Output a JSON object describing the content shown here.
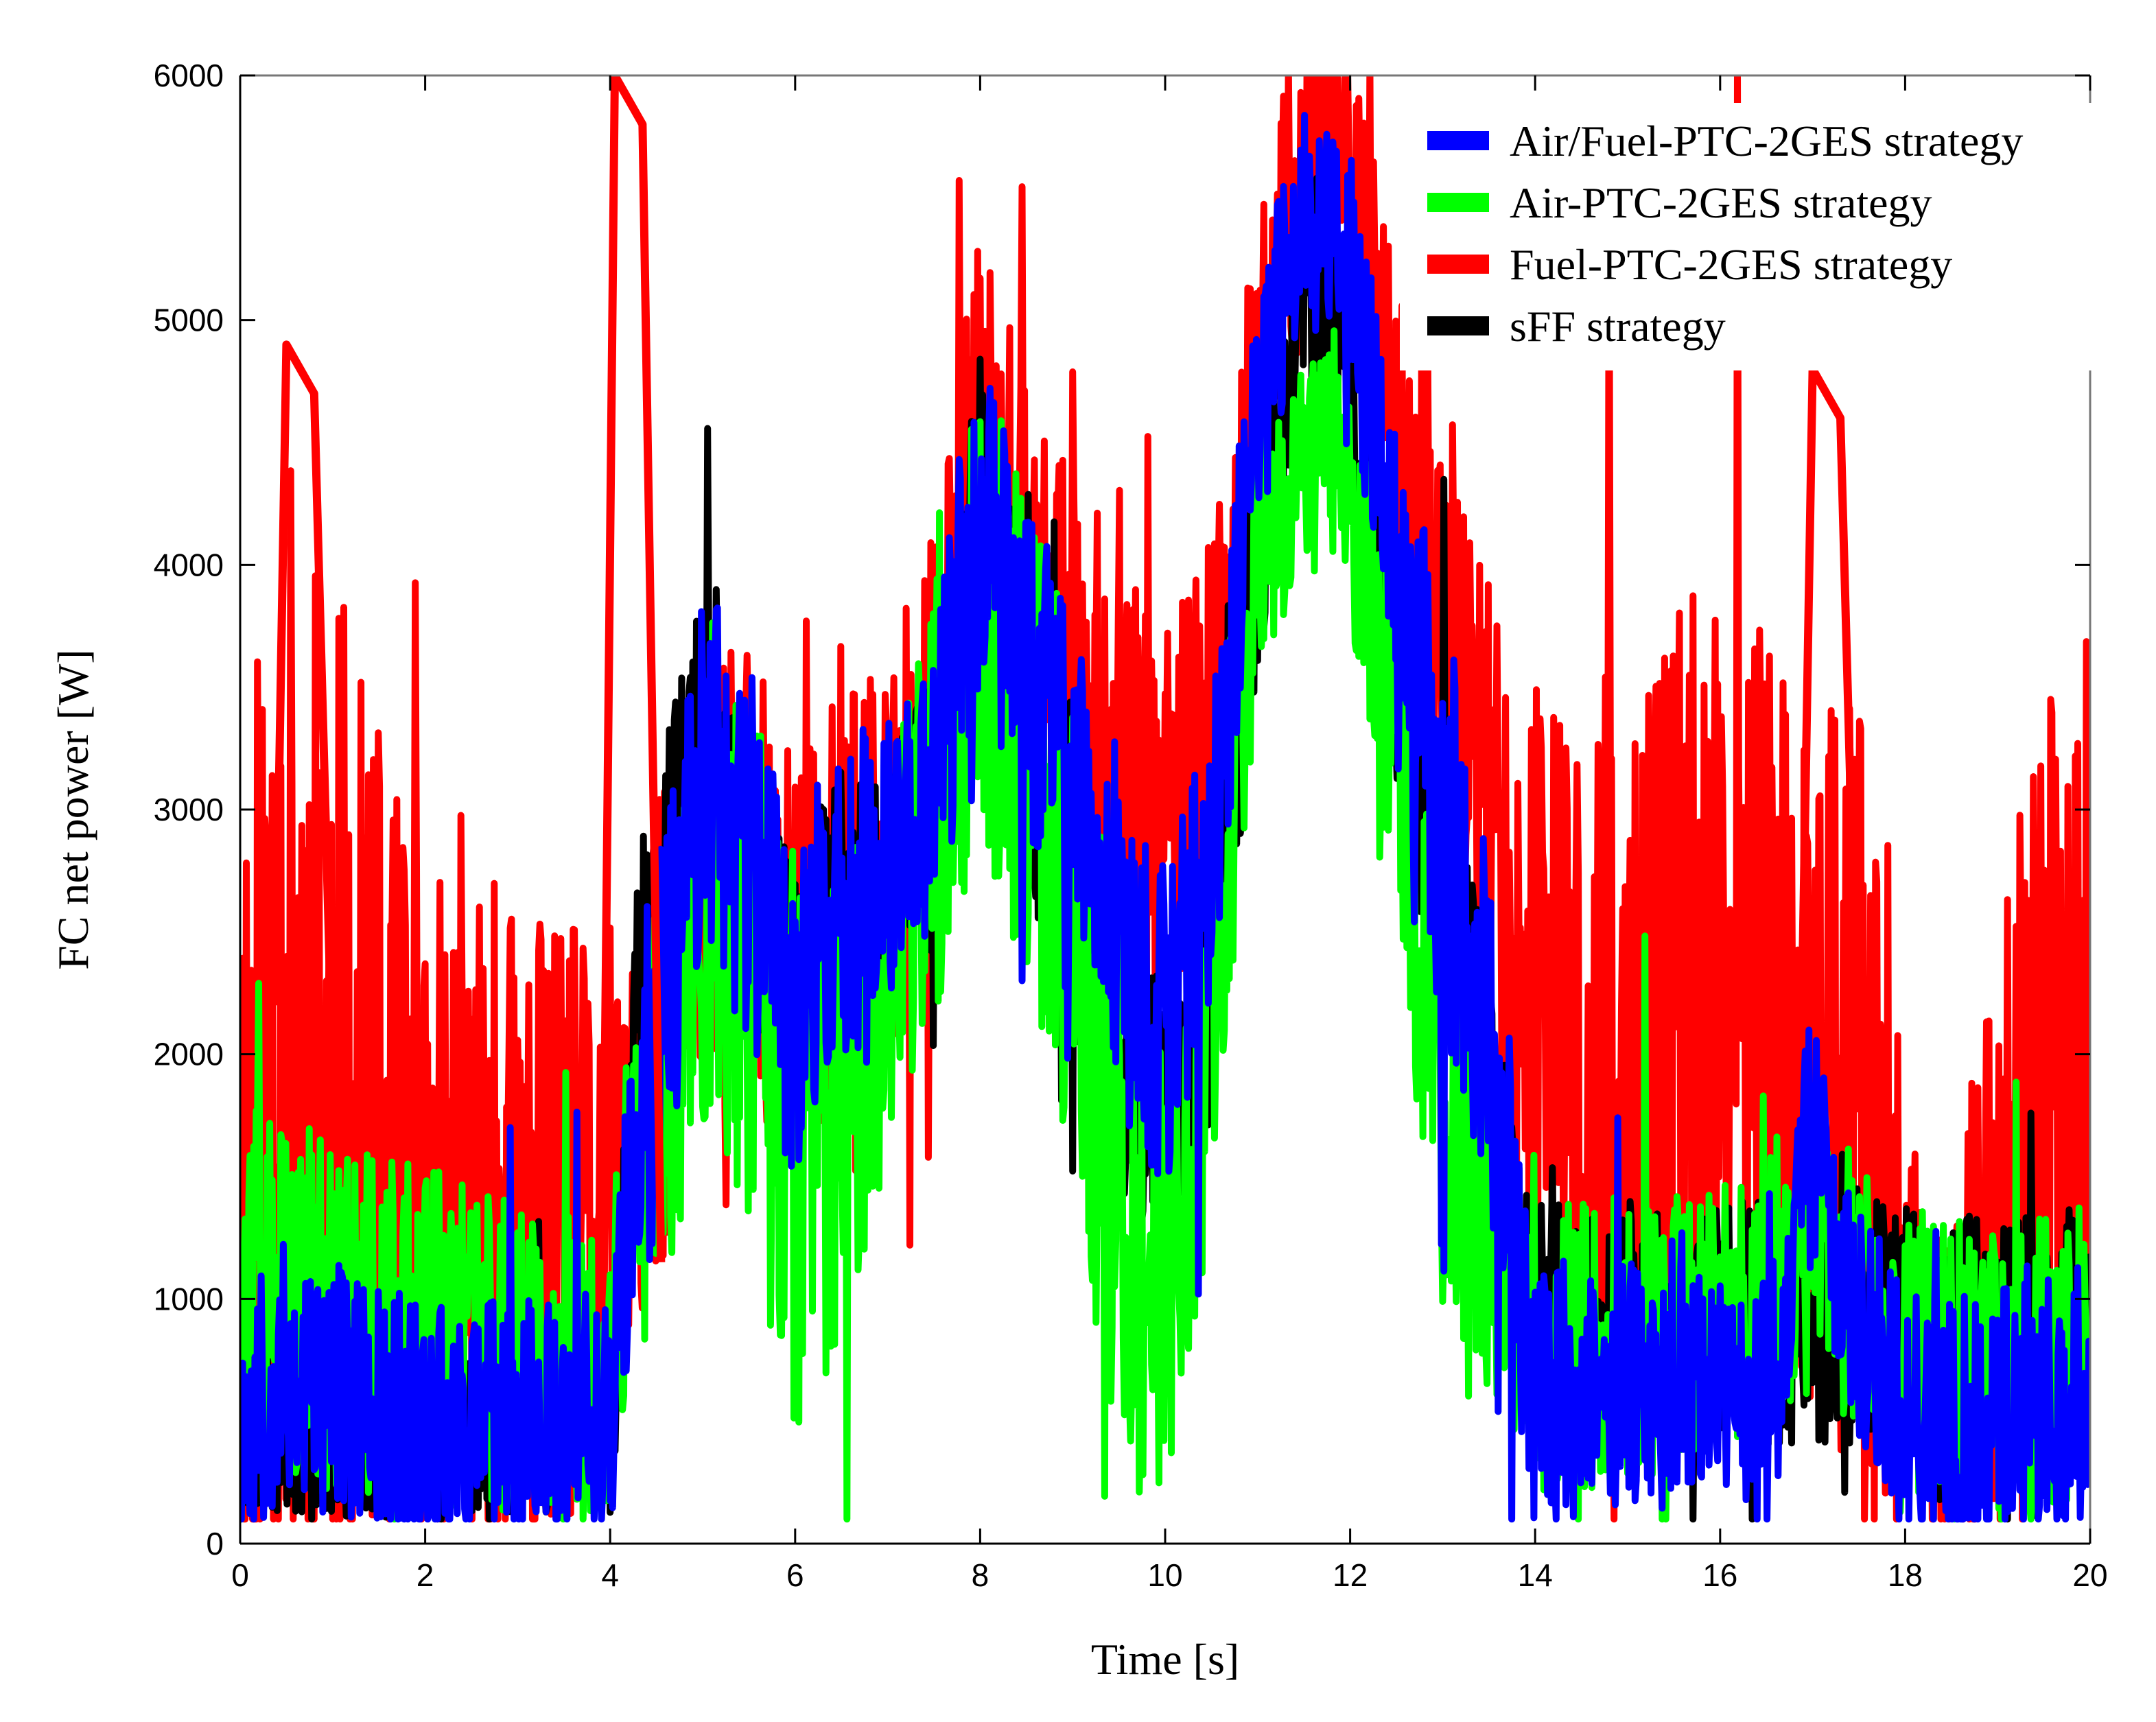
{
  "chart_data": {
    "type": "line",
    "title": "",
    "xlabel": "Time [s]",
    "ylabel": "FC net power [W]",
    "xlim": [
      0,
      20
    ],
    "ylim": [
      0,
      6000
    ],
    "xticks": [
      0,
      2,
      4,
      6,
      8,
      10,
      12,
      14,
      16,
      18,
      20
    ],
    "yticks": [
      0,
      1000,
      2000,
      3000,
      4000,
      5000,
      6000
    ],
    "grid": false,
    "legend": "top-right",
    "series": [
      {
        "name": "Fuel-PTC-2GES strategy",
        "color": "#ff0000",
        "center": [
          [
            0,
            1400
          ],
          [
            0.5,
            2200
          ],
          [
            1,
            1800
          ],
          [
            1.5,
            1500
          ],
          [
            2,
            1300
          ],
          [
            2.5,
            1400
          ],
          [
            3,
            1300
          ],
          [
            3.5,
            1200
          ],
          [
            3.9,
            1300
          ],
          [
            4.1,
            1500
          ],
          [
            4.5,
            2000
          ],
          [
            5,
            2800
          ],
          [
            5.5,
            2700
          ],
          [
            6,
            2300
          ],
          [
            6.5,
            2600
          ],
          [
            7,
            2700
          ],
          [
            7.5,
            3300
          ],
          [
            8,
            4500
          ],
          [
            8.5,
            3900
          ],
          [
            9,
            3700
          ],
          [
            9.5,
            3200
          ],
          [
            10,
            2900
          ],
          [
            10.5,
            3400
          ],
          [
            11,
            4700
          ],
          [
            11.5,
            5800
          ],
          [
            12,
            5700
          ],
          [
            12.5,
            4400
          ],
          [
            13,
            3600
          ],
          [
            13.5,
            3000
          ],
          [
            14,
            2200
          ],
          [
            14.5,
            1800
          ],
          [
            15,
            1900
          ],
          [
            15.5,
            2200
          ],
          [
            16,
            2300
          ],
          [
            16.5,
            2200
          ],
          [
            17,
            2100
          ],
          [
            17.5,
            1800
          ],
          [
            18,
            800
          ],
          [
            18.5,
            500
          ],
          [
            19,
            1300
          ],
          [
            19.5,
            2000
          ],
          [
            20,
            2100
          ]
        ],
        "amplitude": [
          [
            0,
            2200
          ],
          [
            0.8,
            2400
          ],
          [
            2,
            1400
          ],
          [
            3.8,
            1300
          ],
          [
            4.2,
            1000
          ],
          [
            7,
            900
          ],
          [
            10,
            800
          ],
          [
            11,
            700
          ],
          [
            12,
            600
          ],
          [
            13,
            900
          ],
          [
            14,
            1300
          ],
          [
            16,
            1700
          ],
          [
            17.5,
            1600
          ],
          [
            18.3,
            700
          ],
          [
            19,
            1300
          ],
          [
            20,
            1700
          ]
        ],
        "seed": 11
      },
      {
        "name": "sFF strategy",
        "color": "#000000",
        "center": [
          [
            0,
            500
          ],
          [
            4,
            500
          ],
          [
            4.3,
            2200
          ],
          [
            5,
            3300
          ],
          [
            5.5,
            2700
          ],
          [
            6,
            2200
          ],
          [
            6.5,
            2600
          ],
          [
            7,
            2700
          ],
          [
            7.5,
            3000
          ],
          [
            8,
            4300
          ],
          [
            8.5,
            3300
          ],
          [
            9,
            2700
          ],
          [
            9.5,
            2000
          ],
          [
            10,
            1700
          ],
          [
            10.5,
            2300
          ],
          [
            11,
            4000
          ],
          [
            11.5,
            5200
          ],
          [
            12,
            4800
          ],
          [
            12.5,
            3500
          ],
          [
            13,
            2800
          ],
          [
            13.5,
            1800
          ],
          [
            14,
            900
          ],
          [
            15,
            900
          ],
          [
            16,
            900
          ],
          [
            17,
            900
          ],
          [
            18,
            900
          ],
          [
            19,
            900
          ],
          [
            20,
            900
          ]
        ],
        "amplitude": [
          [
            0,
            400
          ],
          [
            4,
            400
          ],
          [
            4.3,
            600
          ],
          [
            7,
            600
          ],
          [
            10,
            600
          ],
          [
            11,
            500
          ],
          [
            12,
            500
          ],
          [
            13,
            600
          ],
          [
            14,
            500
          ],
          [
            20,
            500
          ]
        ],
        "seed": 23
      },
      {
        "name": "Air-PTC-2GES strategy",
        "color": "#00ff00",
        "center": [
          [
            0,
            1000
          ],
          [
            4,
            700
          ],
          [
            4.3,
            1500
          ],
          [
            5,
            2600
          ],
          [
            5.5,
            2400
          ],
          [
            6,
            1600
          ],
          [
            6.5,
            1700
          ],
          [
            7,
            2400
          ],
          [
            7.5,
            3000
          ],
          [
            8,
            3900
          ],
          [
            8.5,
            3300
          ],
          [
            9,
            2600
          ],
          [
            9.5,
            1500
          ],
          [
            10,
            1100
          ],
          [
            10.5,
            2100
          ],
          [
            11,
            3900
          ],
          [
            11.5,
            4500
          ],
          [
            12,
            4300
          ],
          [
            12.5,
            3300
          ],
          [
            13,
            1800
          ],
          [
            13.5,
            1200
          ],
          [
            14,
            800
          ],
          [
            15,
            800
          ],
          [
            16,
            900
          ],
          [
            17,
            1200
          ],
          [
            18,
            800
          ],
          [
            19,
            700
          ],
          [
            20,
            800
          ]
        ],
        "amplitude": [
          [
            0,
            800
          ],
          [
            4,
            600
          ],
          [
            4.5,
            900
          ],
          [
            6,
            1200
          ],
          [
            7,
            800
          ],
          [
            9.5,
            1200
          ],
          [
            10.3,
            900
          ],
          [
            11,
            500
          ],
          [
            12,
            500
          ],
          [
            13,
            1000
          ],
          [
            14,
            600
          ],
          [
            20,
            600
          ]
        ],
        "seed": 37
      },
      {
        "name": "Air/Fuel-PTC-2GES strategy",
        "color": "#0000ff",
        "center": [
          [
            0,
            500
          ],
          [
            0.5,
            700
          ],
          [
            2,
            500
          ],
          [
            3,
            500
          ],
          [
            4,
            550
          ],
          [
            4.3,
            1600
          ],
          [
            5,
            3200
          ],
          [
            5.5,
            2800
          ],
          [
            6,
            2200
          ],
          [
            6.5,
            2600
          ],
          [
            7,
            2700
          ],
          [
            7.5,
            3200
          ],
          [
            8,
            4200
          ],
          [
            8.5,
            3600
          ],
          [
            9,
            3100
          ],
          [
            9.5,
            2400
          ],
          [
            10,
            2100
          ],
          [
            10.5,
            2800
          ],
          [
            11,
            4600
          ],
          [
            11.5,
            5500
          ],
          [
            12,
            5200
          ],
          [
            12.5,
            3900
          ],
          [
            13,
            3000
          ],
          [
            13.5,
            2100
          ],
          [
            14,
            600
          ],
          [
            15,
            700
          ],
          [
            16,
            800
          ],
          [
            16.5,
            500
          ],
          [
            17,
            1700
          ],
          [
            17.5,
            900
          ],
          [
            18,
            500
          ],
          [
            19,
            500
          ],
          [
            20,
            600
          ]
        ],
        "amplitude": [
          [
            0,
            550
          ],
          [
            4,
            500
          ],
          [
            4.3,
            800
          ],
          [
            7,
            700
          ],
          [
            10,
            700
          ],
          [
            11,
            500
          ],
          [
            12,
            500
          ],
          [
            13,
            900
          ],
          [
            14,
            550
          ],
          [
            20,
            550
          ]
        ],
        "seed": 53
      }
    ],
    "annotations": [
      {
        "series": "Fuel-PTC-2GES strategy",
        "peak_x": 4.05,
        "peak_y": 6000
      },
      {
        "series": "Fuel-PTC-2GES strategy",
        "peak_x": 0.5,
        "peak_y": 4900
      },
      {
        "series": "Fuel-PTC-2GES strategy",
        "peak_x": 17,
        "peak_y": 4800
      }
    ]
  }
}
